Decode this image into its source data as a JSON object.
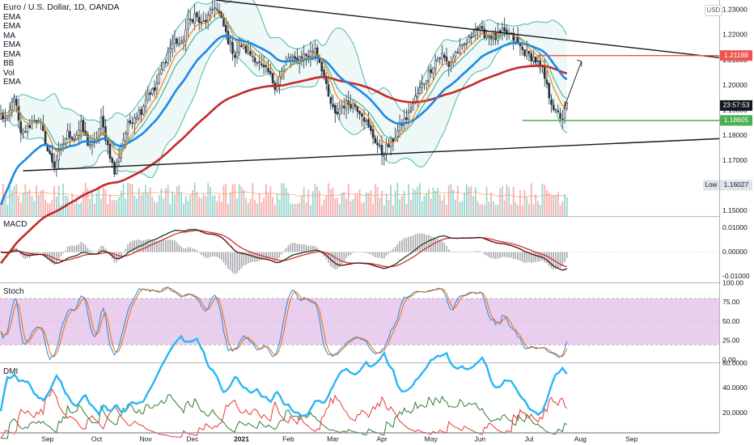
{
  "chart": {
    "symbol_title": "Euro / U.S. Dollar, 1D, OANDA",
    "indicators": [
      "EMA",
      "EMA",
      "MA",
      "EMA",
      "EMA",
      "BB",
      "Vol",
      "EMA"
    ],
    "currency_badge": "USD",
    "colors": {
      "up": "#26a69a",
      "down": "#ef5350",
      "candle_fill": "#2a2e39",
      "ema_fast": "#f57c00",
      "ema_mid": "#26a69a",
      "ema_blue": "#1e88e5",
      "ema_red": "#c62828",
      "bb_fill": "#e0f2f1",
      "bb_line": "#4db6ac",
      "price_tag_red": "#ef5350",
      "price_tag_green": "#4caf50",
      "price_tag_dark": "#131722",
      "stoch_band": "#e1bee7",
      "macd_line": "#131722",
      "signal_line": "#d32f2f",
      "dmi_adx": "#29b6f6"
    }
  },
  "chart_data": [
    {
      "type": "candlestick",
      "pane": "price",
      "title": "Euro / U.S. Dollar, 1D, OANDA",
      "x": [
        "Sep",
        "Oct",
        "Nov",
        "Dec",
        "2021",
        "Feb",
        "Mar",
        "Apr",
        "May",
        "Jun",
        "Jul",
        "Aug",
        "Sep"
      ],
      "ylim": [
        1.148,
        1.234
      ],
      "y_ticks": [
        "1.23000",
        "1.22000",
        "1.21000",
        "1.20000",
        "1.19000",
        "1.18000",
        "1.17000",
        "1.16000",
        "1.15000"
      ],
      "price_labels": {
        "resistance": "1.21188",
        "countdown": "23:57:53",
        "support": "1.18605",
        "low_value": "1.16027",
        "low_label": "Low",
        "top_tick": "1.23"
      },
      "levels": {
        "resistance": 1.21188,
        "support": 1.18605,
        "low": 1.16027
      },
      "close_path": [
        [
          0,
          1.188
        ],
        [
          3,
          1.186
        ],
        [
          6,
          1.196
        ],
        [
          9,
          1.18
        ],
        [
          12,
          1.183
        ],
        [
          15,
          1.187
        ],
        [
          18,
          1.184
        ],
        [
          21,
          1.174
        ],
        [
          24,
          1.168
        ],
        [
          27,
          1.175
        ],
        [
          30,
          1.181
        ],
        [
          33,
          1.179
        ],
        [
          36,
          1.184
        ],
        [
          39,
          1.177
        ],
        [
          42,
          1.176
        ],
        [
          45,
          1.186
        ],
        [
          48,
          1.176
        ],
        [
          51,
          1.165
        ],
        [
          54,
          1.176
        ],
        [
          57,
          1.184
        ],
        [
          60,
          1.188
        ],
        [
          63,
          1.19
        ],
        [
          66,
          1.197
        ],
        [
          69,
          1.198
        ],
        [
          72,
          1.206
        ],
        [
          75,
          1.213
        ],
        [
          78,
          1.218
        ],
        [
          81,
          1.216
        ],
        [
          84,
          1.225
        ],
        [
          87,
          1.228
        ],
        [
          90,
          1.224
        ],
        [
          93,
          1.227
        ],
        [
          96,
          1.232
        ],
        [
          99,
          1.226
        ],
        [
          102,
          1.218
        ],
        [
          105,
          1.212
        ],
        [
          108,
          1.216
        ],
        [
          111,
          1.213
        ],
        [
          114,
          1.211
        ],
        [
          117,
          1.207
        ],
        [
          120,
          1.205
        ],
        [
          123,
          1.2
        ],
        [
          126,
          1.205
        ],
        [
          129,
          1.211
        ],
        [
          132,
          1.21
        ],
        [
          135,
          1.212
        ],
        [
          138,
          1.212
        ],
        [
          141,
          1.215
        ],
        [
          144,
          1.207
        ],
        [
          147,
          1.195
        ],
        [
          150,
          1.188
        ],
        [
          153,
          1.192
        ],
        [
          156,
          1.193
        ],
        [
          159,
          1.192
        ],
        [
          162,
          1.189
        ],
        [
          165,
          1.183
        ],
        [
          168,
          1.178
        ],
        [
          171,
          1.173
        ],
        [
          174,
          1.176
        ],
        [
          177,
          1.18
        ],
        [
          180,
          1.185
        ],
        [
          183,
          1.188
        ],
        [
          186,
          1.195
        ],
        [
          189,
          1.2
        ],
        [
          192,
          1.205
        ],
        [
          195,
          1.21
        ],
        [
          198,
          1.212
        ],
        [
          201,
          1.208
        ],
        [
          204,
          1.213
        ],
        [
          207,
          1.215
        ],
        [
          210,
          1.218
        ],
        [
          213,
          1.223
        ],
        [
          216,
          1.221
        ],
        [
          219,
          1.22
        ],
        [
          222,
          1.219
        ],
        [
          225,
          1.221
        ],
        [
          228,
          1.22
        ],
        [
          231,
          1.218
        ],
        [
          234,
          1.214
        ],
        [
          237,
          1.212
        ],
        [
          240,
          1.21
        ],
        [
          243,
          1.206
        ],
        [
          246,
          1.196
        ],
        [
          249,
          1.189
        ],
        [
          252,
          1.187
        ],
        [
          254,
          1.192
        ]
      ],
      "annotations": {
        "triangle_upper": [
          [
            1.234,
            96.5
          ],
          [
            1.218,
            254
          ],
          [
            1.218,
            261
          ]
        ],
        "triangle_lower": [
          [
            1.166,
            10
          ],
          [
            1.176,
            254
          ],
          [
            1.178,
            277
          ]
        ],
        "arrow_hint": "projected move up from support to resistance"
      },
      "series": [
        {
          "name": "EMA",
          "color": "#f57c00"
        },
        {
          "name": "EMA",
          "color": "#26a69a"
        },
        {
          "name": "MA",
          "color": "#1e88e5"
        },
        {
          "name": "EMA",
          "color": "#c62828"
        },
        {
          "name": "BB",
          "color": "#4db6ac"
        },
        {
          "name": "Vol"
        }
      ]
    },
    {
      "type": "line",
      "pane": "macd",
      "title": "MACD",
      "ylim": [
        -0.0125,
        0.0145
      ],
      "y_ticks": [
        "0.01000",
        "0.00000",
        "-0.01000"
      ]
    },
    {
      "type": "line",
      "pane": "stoch",
      "title": "Stoch",
      "ylim": [
        -3,
        100
      ],
      "bands": [
        20,
        80
      ],
      "y_ticks": [
        "100.00",
        "75.00",
        "50.00",
        "25.00",
        "0.00"
      ]
    },
    {
      "type": "line",
      "pane": "dmi",
      "title": "DMI",
      "ylim": [
        5,
        60
      ],
      "y_ticks": [
        "60.0000",
        "40.0000",
        "20.0000"
      ]
    }
  ],
  "x_axis": {
    "labels": [
      {
        "text": "Sep",
        "bar": 21
      },
      {
        "text": "Oct",
        "bar": 43
      },
      {
        "text": "Nov",
        "bar": 65
      },
      {
        "text": "Dec",
        "bar": 86
      },
      {
        "text": "2021",
        "bar": 108
      },
      {
        "text": "Feb",
        "bar": 129
      },
      {
        "text": "Mar",
        "bar": 149
      },
      {
        "text": "Apr",
        "bar": 171
      },
      {
        "text": "May",
        "bar": 193
      },
      {
        "text": "Jun",
        "bar": 215
      },
      {
        "text": "Jul",
        "bar": 237
      },
      {
        "text": "Aug",
        "bar": 260
      },
      {
        "text": "Sep",
        "bar": 283
      }
    ]
  }
}
